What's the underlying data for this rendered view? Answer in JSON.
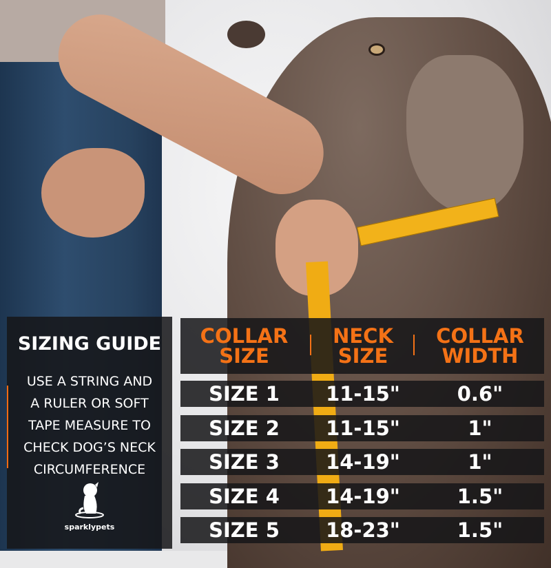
{
  "sidebar": {
    "title": "SIZING GUIDE",
    "description_lines": [
      "USE A STRING AND",
      "A RULER OR SOFT",
      "TAPE MEASURE TO",
      "CHECK DOG’S NECK",
      "CIRCUMFERENCE"
    ],
    "brand": "sparklypets",
    "accent_color": "#f26a11"
  },
  "table": {
    "headers": [
      {
        "line1": "COLLAR",
        "line2": "SIZE"
      },
      {
        "line1": "NECK",
        "line2": "SIZE"
      },
      {
        "line1": "COLLAR",
        "line2": "WIDTH"
      }
    ],
    "header_color": "#f47216",
    "rows": [
      [
        "SIZE 1",
        "11-15\"",
        "0.6\""
      ],
      [
        "SIZE 2",
        "11-15\"",
        "1\""
      ],
      [
        "SIZE 3",
        "14-19\"",
        "1\""
      ],
      [
        "SIZE 4",
        "14-19\"",
        "1.5\""
      ],
      [
        "SIZE 5",
        "18-23\"",
        "1.5\""
      ]
    ]
  }
}
